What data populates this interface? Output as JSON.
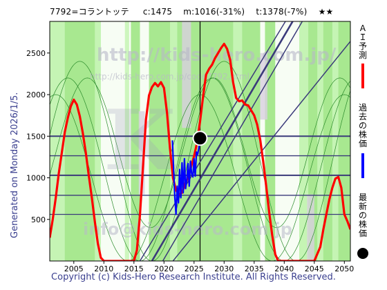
{
  "header": {
    "code_title": "7792=コラントッテ",
    "current": "c:1475",
    "mid": "m:1016(-31%)",
    "target": "t:1378(-7%)",
    "rating": "★★"
  },
  "generated_label": "Generated on Monday 2026/1/5.",
  "footer": "Copyright (c) Kids-Hero Research Institute. All Rights Reserved.",
  "watermarks": [
    "http://kids-hero.com.jp/",
    "http://kids-hero.com.jp/code7792.html",
    "info@kids-hero.com.jp"
  ],
  "legend": {
    "ai_forecast": "ＡＩ予測",
    "past_price": "過去の株価",
    "latest_price": "最新の株価"
  },
  "colors": {
    "ai_forecast": "#ff0000",
    "past_price": "#0000ff",
    "latest_price": "#000000",
    "band_green": "#a8e890",
    "band_light": "#c8f5b8",
    "band_white": "#ffffff",
    "channel": "#3a3a7a"
  },
  "chart_data": {
    "type": "line",
    "xlim": [
      2001,
      2051
    ],
    "ylim": [
      0,
      2880
    ],
    "xticks": [
      2005,
      2010,
      2015,
      2020,
      2025,
      2030,
      2035,
      2040,
      2045,
      2050
    ],
    "yticks": [
      500,
      1000,
      1500,
      2000,
      2500
    ],
    "latest_point": {
      "x": 2026.0,
      "y": 1475
    },
    "horizontal_levels": [
      1500,
      1265,
      1030,
      790,
      560
    ],
    "vertical_marker_x": 2026.0,
    "channel_lines": [
      {
        "x": [
          2016,
          2040.2
        ],
        "y": [
          0,
          2880
        ]
      },
      {
        "x": [
          2018,
          2041.4
        ],
        "y": [
          0,
          2880
        ]
      },
      {
        "x": [
          2019.8,
          2043.0
        ],
        "y": [
          0,
          2880
        ]
      },
      {
        "x": [
          2021.5,
          2051
        ],
        "y": [
          0,
          2640
        ]
      }
    ],
    "series": [
      {
        "name": "ＡＩ予測",
        "x": [
          2001,
          2001.5,
          2002,
          2002.5,
          2003,
          2003.5,
          2004,
          2004.5,
          2005,
          2005.5,
          2006,
          2006.5,
          2007,
          2007.5,
          2008,
          2008.5,
          2009,
          2009.5,
          2010,
          2011,
          2012,
          2013,
          2014,
          2015,
          2015.5,
          2016,
          2016.5,
          2017,
          2017.5,
          2018,
          2018.5,
          2019,
          2019.5,
          2020,
          2020.5,
          2021,
          2021.5,
          2022,
          2022.5,
          2023,
          2023.5,
          2024,
          2024.5,
          2025,
          2025.5,
          2026,
          2026.5,
          2027,
          2027.5,
          2028,
          2028.5,
          2029,
          2029.5,
          2030,
          2030.5,
          2031,
          2031.5,
          2032,
          2032.5,
          2033,
          2033.5,
          2034,
          2034.5,
          2035,
          2035.5,
          2036,
          2036.5,
          2037,
          2037.5,
          2038,
          2038.5,
          2039,
          2039.5,
          2040,
          2041,
          2042,
          2043,
          2044,
          2045,
          2046,
          2046.5,
          2047,
          2047.5,
          2048,
          2048.5,
          2049,
          2049.5,
          2050,
          2050.5,
          2051
        ],
        "y": [
          280,
          500,
          760,
          1050,
          1300,
          1550,
          1720,
          1860,
          1940,
          1880,
          1740,
          1540,
          1300,
          1020,
          760,
          470,
          210,
          40,
          0,
          0,
          0,
          0,
          0,
          0,
          130,
          550,
          1120,
          1700,
          1990,
          2090,
          2140,
          2100,
          2150,
          2080,
          1780,
          1350,
          1000,
          850,
          800,
          820,
          930,
          1000,
          1130,
          1260,
          1420,
          1680,
          1980,
          2240,
          2310,
          2360,
          2440,
          2500,
          2560,
          2610,
          2550,
          2420,
          2150,
          1960,
          1920,
          1930,
          1880,
          1870,
          1810,
          1750,
          1640,
          1460,
          1200,
          900,
          580,
          310,
          80,
          0,
          0,
          0,
          0,
          0,
          0,
          0,
          0,
          170,
          380,
          560,
          740,
          880,
          990,
          1010,
          880,
          560,
          480,
          380
        ]
      },
      {
        "name": "過去の株価",
        "x": [
          2021.4,
          2021.6,
          2021.8,
          2022.0,
          2022.2,
          2022.4,
          2022.6,
          2022.8,
          2023.0,
          2023.2,
          2023.4,
          2023.6,
          2023.8,
          2024.0,
          2024.2,
          2024.4,
          2024.6,
          2024.8,
          2025.0,
          2025.2,
          2025.4,
          2025.6,
          2025.8,
          2026.0
        ],
        "y": [
          1450,
          1100,
          760,
          560,
          900,
          700,
          1100,
          760,
          1180,
          820,
          1230,
          870,
          980,
          1170,
          900,
          1200,
          1050,
          1010,
          1230,
          1020,
          1310,
          1280,
          1360,
          1475
        ]
      }
    ]
  }
}
